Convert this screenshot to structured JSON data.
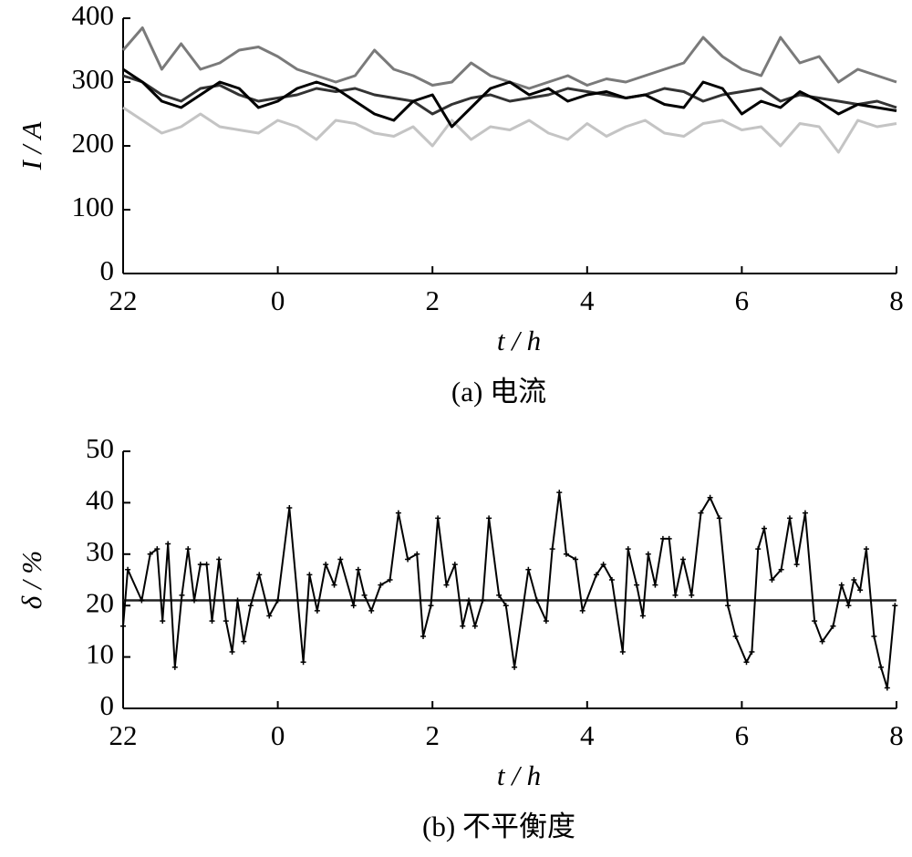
{
  "chart_data": [
    {
      "type": "line",
      "y_label": "I / A",
      "x_label": "t / h",
      "caption": "(a)  电流",
      "x": [
        22,
        22.25,
        22.5,
        22.75,
        23,
        23.25,
        23.5,
        23.75,
        24,
        24.25,
        24.5,
        24.75,
        25,
        25.25,
        25.5,
        25.75,
        26,
        26.25,
        26.5,
        26.75,
        27,
        27.25,
        27.5,
        27.75,
        28,
        28.25,
        28.5,
        28.75,
        29,
        29.25,
        29.5,
        29.75,
        30,
        30.25,
        30.5,
        30.75,
        31,
        31.25,
        31.5,
        31.75,
        32
      ],
      "series": [
        {
          "color": "#c4c4c4",
          "values": [
            260,
            240,
            220,
            230,
            250,
            230,
            225,
            220,
            240,
            230,
            210,
            240,
            235,
            220,
            215,
            230,
            200,
            240,
            210,
            230,
            225,
            240,
            220,
            210,
            235,
            215,
            230,
            240,
            220,
            215,
            235,
            240,
            225,
            230,
            200,
            235,
            230,
            190,
            240,
            230,
            235
          ]
        },
        {
          "color": "#7a7a7a",
          "values": [
            350,
            385,
            320,
            360,
            320,
            330,
            350,
            355,
            340,
            320,
            310,
            300,
            310,
            350,
            320,
            310,
            295,
            300,
            330,
            310,
            300,
            290,
            300,
            310,
            295,
            305,
            300,
            310,
            320,
            330,
            370,
            340,
            320,
            310,
            370,
            330,
            340,
            300,
            320,
            310,
            300
          ]
        },
        {
          "color": "#333333",
          "values": [
            310,
            300,
            280,
            270,
            290,
            295,
            280,
            270,
            275,
            280,
            290,
            285,
            290,
            280,
            275,
            270,
            250,
            265,
            275,
            280,
            270,
            275,
            280,
            290,
            285,
            280,
            275,
            280,
            290,
            285,
            270,
            280,
            285,
            290,
            270,
            280,
            275,
            270,
            265,
            270,
            260
          ]
        },
        {
          "color": "#000000",
          "values": [
            320,
            300,
            270,
            260,
            280,
            300,
            290,
            260,
            270,
            290,
            300,
            290,
            270,
            250,
            240,
            270,
            280,
            230,
            260,
            290,
            300,
            280,
            290,
            270,
            280,
            285,
            275,
            280,
            265,
            260,
            300,
            290,
            250,
            270,
            260,
            285,
            270,
            250,
            265,
            260,
            255
          ]
        }
      ],
      "xlim": [
        22,
        32
      ],
      "xticks": [
        22,
        {
          "value": 24,
          "label": "0"
        },
        {
          "value": 26,
          "label": "2"
        },
        {
          "value": 28,
          "label": "4"
        },
        {
          "value": 30,
          "label": "6"
        },
        {
          "value": 32,
          "label": "8"
        }
      ],
      "ylim": [
        0,
        400
      ],
      "yticks": [
        0,
        100,
        200,
        300,
        400
      ]
    },
    {
      "type": "line",
      "y_label": "δ / %",
      "x_label": "t / h",
      "caption": "(b)  不平衡度",
      "x": [
        22,
        22.06,
        22.24,
        22.35,
        22.44,
        22.51,
        22.58,
        22.67,
        22.76,
        22.84,
        22.92,
        23,
        23.08,
        23.15,
        23.24,
        23.33,
        23.41,
        23.48,
        23.56,
        23.65,
        23.76,
        23.89,
        24,
        24.15,
        24.33,
        24.41,
        24.51,
        24.62,
        24.73,
        24.81,
        24.98,
        25.04,
        25.12,
        25.21,
        25.33,
        25.45,
        25.56,
        25.68,
        25.8,
        25.88,
        25.98,
        26.07,
        26.18,
        26.29,
        26.39,
        26.47,
        26.55,
        26.65,
        26.73,
        26.86,
        26.95,
        27.06,
        27.24,
        27.35,
        27.47,
        27.55,
        27.64,
        27.73,
        27.85,
        27.94,
        28.12,
        28.21,
        28.32,
        28.46,
        28.53,
        28.64,
        28.72,
        28.79,
        28.88,
        28.98,
        29.06,
        29.14,
        29.24,
        29.35,
        29.47,
        29.59,
        29.71,
        29.82,
        29.92,
        30.06,
        30.13,
        30.21,
        30.29,
        30.39,
        30.51,
        30.62,
        30.71,
        30.82,
        30.94,
        31.04,
        31.18,
        31.29,
        31.38,
        31.45,
        31.53,
        31.61,
        31.71,
        31.8,
        31.88,
        31.98
      ],
      "series": [
        {
          "color": "#000000",
          "markers": true,
          "values": [
            16,
            27,
            21,
            30,
            31,
            17,
            32,
            8,
            22,
            31,
            21,
            28,
            28,
            17,
            29,
            17,
            11,
            21,
            13,
            20,
            26,
            18,
            21,
            39,
            9,
            26,
            19,
            28,
            24,
            29,
            20,
            27,
            22,
            19,
            24,
            25,
            38,
            29,
            30,
            14,
            20,
            37,
            24,
            28,
            16,
            21,
            16,
            21,
            37,
            22,
            20,
            8,
            27,
            21,
            17,
            31,
            42,
            30,
            29,
            19,
            26,
            28,
            25,
            11,
            31,
            24,
            18,
            30,
            24,
            33,
            33,
            22,
            29,
            22,
            38,
            41,
            37,
            20,
            14,
            9,
            11,
            31,
            35,
            25,
            27,
            37,
            28,
            38,
            17,
            13,
            16,
            24,
            20,
            25,
            23,
            31,
            14,
            8,
            4,
            20
          ]
        }
      ],
      "reference_line": 21,
      "xlim": [
        22,
        32
      ],
      "xticks": [
        22,
        {
          "value": 24,
          "label": "0"
        },
        {
          "value": 26,
          "label": "2"
        },
        {
          "value": 28,
          "label": "4"
        },
        {
          "value": 30,
          "label": "6"
        },
        {
          "value": 32,
          "label": "8"
        }
      ],
      "ylim": [
        0,
        50
      ],
      "yticks": [
        0,
        10,
        20,
        30,
        40,
        50
      ]
    }
  ]
}
